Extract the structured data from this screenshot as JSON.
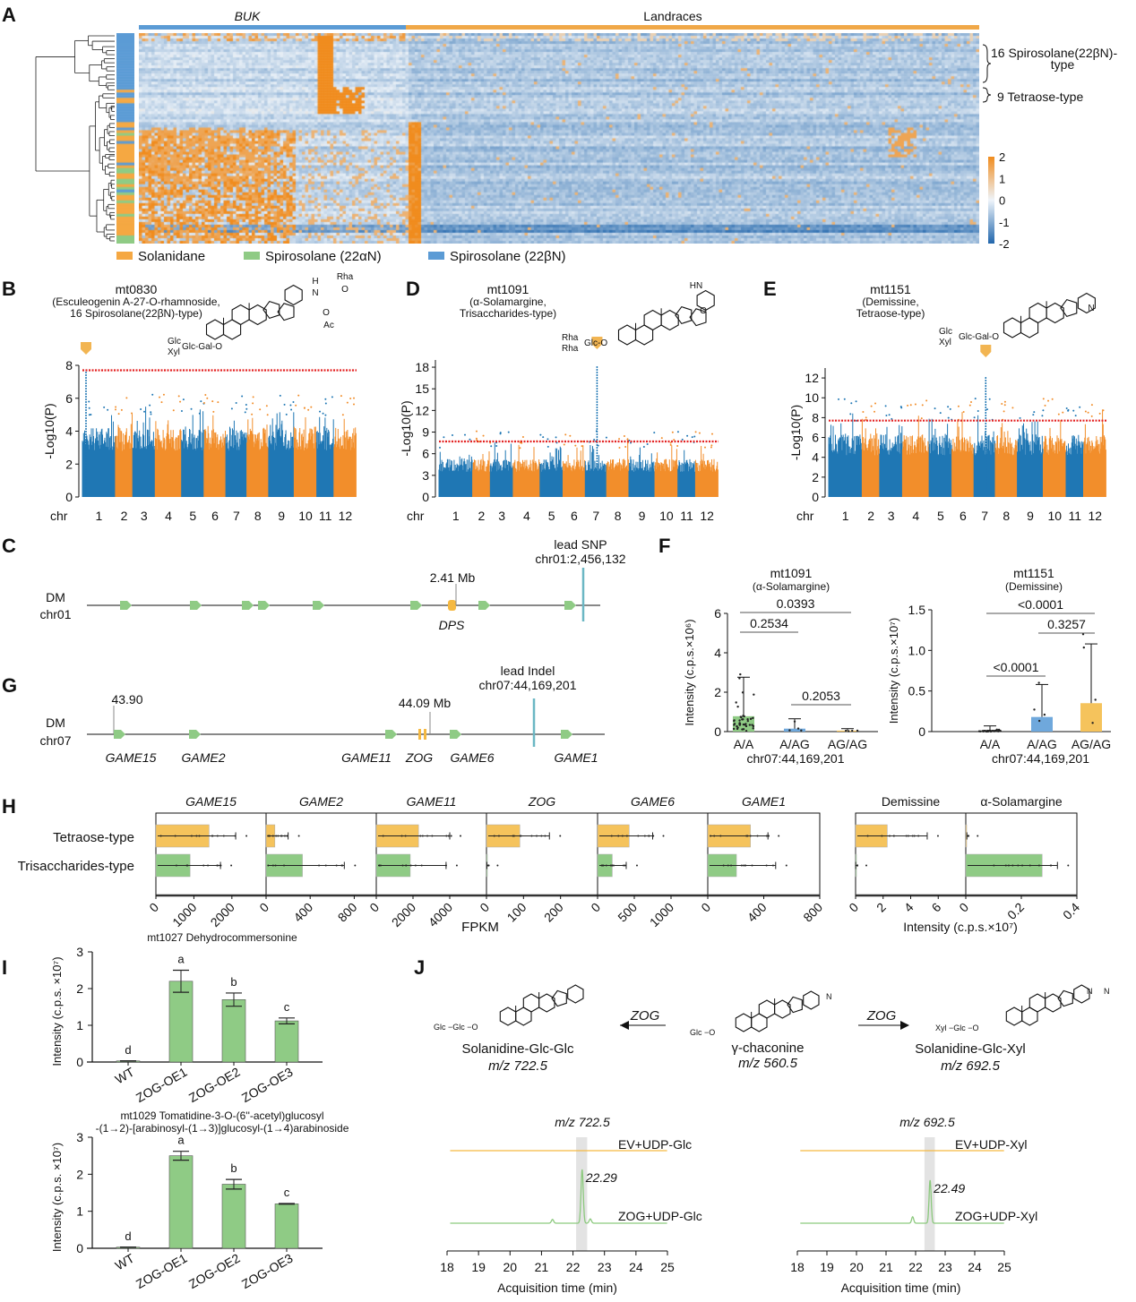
{
  "panel_labels": {
    "A": "A",
    "B": "B",
    "C": "C",
    "D": "D",
    "E": "E",
    "F": "F",
    "G": "G",
    "H": "H",
    "I": "I",
    "J": "J"
  },
  "heatmap": {
    "groups": [
      {
        "label": "BUK",
        "color": "#5b9bd5"
      },
      {
        "label": "Landraces",
        "color": "#f0a848"
      }
    ],
    "brackets": [
      {
        "line1": "16 Spirosolane(22βN)-",
        "line2": "type"
      },
      {
        "line1": "9 Tetraose-type"
      }
    ],
    "colorbar": {
      "ticks": [
        "2",
        "1",
        "0",
        "-1",
        "-2"
      ],
      "low": "#2166ac",
      "mid": "#eef4fa",
      "high": "#f08c1e"
    },
    "legend": [
      {
        "label": "Solanidane",
        "color": "#f5a843"
      },
      {
        "label": "Spirosolane (22αN)",
        "color": "#8fcb85"
      },
      {
        "label": "Spirosolane (22βN)",
        "color": "#5b9bd5"
      }
    ]
  },
  "structures": {
    "B": [
      "H",
      "N",
      "Rha",
      "O",
      "O",
      "Ac",
      "Glc",
      "Xyl",
      "Glc-Gal-O"
    ],
    "D": [
      "HN",
      "O",
      "Rha",
      "Rha",
      "Glc-O"
    ],
    "E": [
      "N",
      "Glc",
      "Xyl",
      "Glc-Gal-O"
    ]
  },
  "gene_tracks": {
    "C": {
      "chrom_label1": "DM",
      "chrom_label2": "chr01",
      "marker_label": "2.41 Mb",
      "lead_label1": "lead SNP",
      "lead_label2": "chr01:2,456,132",
      "genes": [
        {
          "name": "DPS",
          "color": "#f5b942"
        }
      ],
      "other_gene_color": "#8fcb85"
    },
    "G": {
      "chrom_label1": "DM",
      "chrom_label2": "chr07",
      "start_label": "43.90",
      "marker_label": "44.09 Mb",
      "lead_label1": "lead Indel",
      "lead_label2": "chr07:44,169,201",
      "genes": [
        {
          "name": "GAME15"
        },
        {
          "name": "GAME2"
        },
        {
          "name": "GAME11"
        },
        {
          "name": "ZOG"
        },
        {
          "name": "GAME6"
        },
        {
          "name": "GAME1"
        }
      ],
      "lead_color": "#6bb7c4"
    }
  },
  "chart_data": [
    {
      "type": "scatter",
      "panel": "B",
      "title": "mt0830",
      "subtitle": [
        "(Esculeogenin A-27-O-rhamnoside,",
        "16 Spirosolane(22βN)-type)"
      ],
      "xlabel": "chr",
      "ylabel": "-Log10(P)",
      "categories": [
        "1",
        "2",
        "3",
        "4",
        "5",
        "6",
        "7",
        "8",
        "9",
        "10",
        "11",
        "12"
      ],
      "yticks": [
        "0",
        "2",
        "4",
        "6",
        "8"
      ],
      "ylim": [
        0,
        8
      ],
      "threshold": 7.7,
      "peak": {
        "chr": "1",
        "value": 7.7
      },
      "colors": [
        "#1f77b4",
        "#f28e2b"
      ]
    },
    {
      "type": "scatter",
      "panel": "D",
      "title": "mt1091",
      "subtitle": [
        "(α-Solamargine,",
        "Trisaccharides-type)"
      ],
      "xlabel": "chr",
      "ylabel": "-Log10(P)",
      "categories": [
        "1",
        "2",
        "3",
        "4",
        "5",
        "6",
        "7",
        "8",
        "9",
        "10",
        "11",
        "12"
      ],
      "yticks": [
        "0",
        "3",
        "6",
        "9",
        "12",
        "15",
        "18"
      ],
      "ylim": [
        0,
        19
      ],
      "threshold": 7.7,
      "peak": {
        "chr": "7",
        "value": 18.2
      },
      "colors": [
        "#1f77b4",
        "#f28e2b"
      ]
    },
    {
      "type": "scatter",
      "panel": "E",
      "title": "mt1151",
      "subtitle": [
        "(Demissine,",
        "Tetraose-type)"
      ],
      "xlabel": "chr",
      "ylabel": "-Log10(P)",
      "categories": [
        "1",
        "2",
        "3",
        "4",
        "5",
        "6",
        "7",
        "8",
        "9",
        "10",
        "11",
        "12"
      ],
      "yticks": [
        "0",
        "2",
        "4",
        "6",
        "8",
        "10",
        "12"
      ],
      "ylim": [
        0,
        13
      ],
      "threshold": 7.7,
      "peak": {
        "chr": "7",
        "value": 12.1
      },
      "colors": [
        "#1f77b4",
        "#f28e2b"
      ]
    },
    {
      "type": "bar",
      "panel": "F",
      "title": "mt1091",
      "subtitle": "(α-Solamargine)",
      "ylabel": "Intensity (c.p.s.×10⁶)",
      "xlabel": "chr07:44,169,201",
      "categories": [
        "A/A",
        "A/AG",
        "AG/AG"
      ],
      "values": [
        0.78,
        0.15,
        0.05
      ],
      "errors": [
        1.98,
        0.5,
        0.1
      ],
      "colors": [
        "#8fcb85",
        "#6fa8dc",
        "#f5c35c"
      ],
      "ylim": [
        0,
        6
      ],
      "yticks": [
        "0",
        "2",
        "4",
        "6"
      ],
      "pvalues": [
        {
          "label": "0.0393",
          "from": 0,
          "to": 2
        },
        {
          "label": "0.2534",
          "from": 0,
          "to": 1
        },
        {
          "label": "0.2053",
          "from": 1,
          "to": 2
        }
      ]
    },
    {
      "type": "bar",
      "panel": "F",
      "title": "mt1151",
      "subtitle": "(Demissine)",
      "ylabel": "Intensity (c.p.s.×10⁷)",
      "xlabel": "chr07:44,169,201",
      "categories": [
        "A/A",
        "A/AG",
        "AG/AG"
      ],
      "values": [
        0.01,
        0.18,
        0.35
      ],
      "errors": [
        0.06,
        0.4,
        0.73
      ],
      "colors": [
        "#8fcb85",
        "#6fa8dc",
        "#f5c35c"
      ],
      "ylim": [
        0,
        1.5
      ],
      "yticks": [
        "0",
        "0.5",
        "1.0",
        "1.5"
      ],
      "pvalues": [
        {
          "label": "<0.0001",
          "from": 0,
          "to": 2
        },
        {
          "label": "0.3257",
          "from": 1,
          "to": 2
        },
        {
          "label": "<0.0001",
          "from": 0,
          "to": 1
        }
      ]
    },
    {
      "type": "bar",
      "panel": "H",
      "orientation": "horizontal",
      "categories": [
        "Tetraose-type",
        "Trisaccharides-type"
      ],
      "colors": [
        "#f5c35c",
        "#8fcb85"
      ],
      "xlabel": "FPKM",
      "subplots": [
        {
          "title": "GAME15",
          "xlim": [
            0,
            2900
          ],
          "ticks": [
            "0",
            "1000",
            "2000"
          ],
          "tick_values": [
            0,
            1000,
            2000
          ],
          "values": [
            1400,
            900
          ],
          "errors": [
            2100,
            1700
          ]
        },
        {
          "title": "GAME2",
          "xlim": [
            0,
            1000
          ],
          "ticks": [
            "0",
            "400",
            "800"
          ],
          "tick_values": [
            0,
            400,
            800
          ],
          "values": [
            80,
            330
          ],
          "errors": [
            200,
            710
          ]
        },
        {
          "title": "GAME11",
          "xlim": [
            0,
            6000
          ],
          "ticks": [
            "0",
            "2000",
            "4000"
          ],
          "tick_values": [
            0,
            2000,
            4000
          ],
          "values": [
            2300,
            1850
          ],
          "errors": [
            4000,
            3800
          ]
        },
        {
          "title": "ZOG",
          "xlim": [
            0,
            300
          ],
          "ticks": [
            "0",
            "100",
            "200"
          ],
          "tick_values": [
            0,
            100,
            200
          ],
          "values": [
            90,
            1
          ],
          "errors": [
            170,
            1
          ]
        },
        {
          "title": "GAME6",
          "xlim": [
            0,
            1500
          ],
          "ticks": [
            "0",
            "500",
            "1000"
          ],
          "tick_values": [
            0,
            500,
            1000
          ],
          "values": [
            430,
            200
          ],
          "errors": [
            750,
            390
          ]
        },
        {
          "title": "GAME1",
          "xlim": [
            0,
            800
          ],
          "ticks": [
            "0",
            "400",
            "800"
          ],
          "tick_values": [
            0,
            400,
            800
          ],
          "values": [
            305,
            205
          ],
          "errors": [
            430,
            485
          ]
        }
      ]
    },
    {
      "type": "bar",
      "panel": "H",
      "orientation": "horizontal",
      "categories": [
        "Tetraose-type",
        "Trisaccharides-type"
      ],
      "colors": [
        "#f5c35c",
        "#8fcb85"
      ],
      "xlabel": "Intensity (c.p.s.×10⁷)",
      "subplots": [
        {
          "title": "Demissine",
          "xlim": [
            0,
            8
          ],
          "ticks": [
            "0",
            "2",
            "4",
            "6"
          ],
          "tick_values": [
            0,
            2,
            4,
            6
          ],
          "values": [
            2.3,
            0
          ],
          "errors": [
            5.2,
            0
          ]
        },
        {
          "title": "α-Solamargine",
          "xlim": [
            0,
            0.4
          ],
          "ticks": [
            "0",
            "0.2",
            "0.4"
          ],
          "tick_values": [
            0,
            0.2,
            0.4
          ],
          "values": [
            0.003,
            0.275
          ],
          "errors": [
            0.004,
            0.33
          ]
        }
      ]
    },
    {
      "type": "bar",
      "panel": "I",
      "title": "mt1027 Dehydrocommersonine",
      "ylabel": "Intensity (c.p.s. ×10⁷)",
      "categories": [
        "WT",
        "ZOG-OE1",
        "ZOG-OE2",
        "ZOG-OE3"
      ],
      "values": [
        0.03,
        2.2,
        1.7,
        1.12
      ],
      "errors": [
        0.0,
        0.3,
        0.18,
        0.08
      ],
      "letters": [
        "d",
        "a",
        "b",
        "c"
      ],
      "ylim": [
        0,
        3
      ],
      "yticks": [
        "0",
        "1",
        "2",
        "3"
      ],
      "color": "#8fcb85"
    },
    {
      "type": "bar",
      "panel": "I",
      "title": "mt1029 Tomatidine-3-O-(6''-acetyl)glucosyl",
      "title2": "-(1→2)-[arabinosyl-(1→3)]glucosyl-(1→4)arabinoside",
      "ylabel": "Intensity (c.p.s. ×10⁷)",
      "categories": [
        "WT",
        "ZOG-OE1",
        "ZOG-OE2",
        "ZOG-OE3"
      ],
      "values": [
        0.03,
        2.5,
        1.73,
        1.2
      ],
      "errors": [
        0.0,
        0.12,
        0.13,
        0.01
      ],
      "letters": [
        "d",
        "a",
        "b",
        "c"
      ],
      "ylim": [
        0,
        3
      ],
      "yticks": [
        "0",
        "1",
        "2",
        "3"
      ],
      "color": "#8fcb85"
    },
    {
      "type": "line",
      "panel": "J",
      "title": "m/z 722.5",
      "xlabel": "Acquisition time (min)",
      "xlim": [
        18,
        25
      ],
      "xticks": [
        "18",
        "19",
        "20",
        "21",
        "22",
        "23",
        "24",
        "25"
      ],
      "highlight": [
        22.1,
        22.45
      ],
      "peak_label": "22.29",
      "series": [
        {
          "name": "EV+UDP-Glc",
          "color": "#f5b942",
          "peaks": []
        },
        {
          "name": "ZOG+UDP-Glc",
          "color": "#8cc97e",
          "peaks": [
            {
              "rt": 22.29,
              "height": 1.0
            },
            {
              "rt": 21.35,
              "height": 0.07
            },
            {
              "rt": 22.55,
              "height": 0.08
            }
          ]
        }
      ]
    },
    {
      "type": "line",
      "panel": "J",
      "title": "m/z 692.5",
      "xlabel": "Acquisition time (min)",
      "xlim": [
        18,
        25
      ],
      "xticks": [
        "18",
        "19",
        "20",
        "21",
        "22",
        "23",
        "24",
        "25"
      ],
      "highlight": [
        22.3,
        22.65
      ],
      "peak_label": "22.49",
      "series": [
        {
          "name": "EV+UDP-Xyl",
          "color": "#f5b942",
          "peaks": []
        },
        {
          "name": "ZOG+UDP-Xyl",
          "color": "#8cc97e",
          "peaks": [
            {
              "rt": 22.49,
              "height": 0.8
            },
            {
              "rt": 21.9,
              "height": 0.12
            }
          ]
        }
      ]
    }
  ],
  "scheme": {
    "enzyme": "ZOG",
    "left": {
      "name": "Solanidine-Glc-Glc",
      "mz": "m/z  722.5",
      "sugar": "Glc −Glc −O"
    },
    "center": {
      "name": "γ-chaconine",
      "mz": "m/z 560.5",
      "sugar": "Glc −O"
    },
    "right": {
      "name": "Solanidine-Glc-Xyl",
      "mz": "m/z 692.5",
      "sugar": "Xyl −Glc −O"
    },
    "ring_atom": "N"
  }
}
